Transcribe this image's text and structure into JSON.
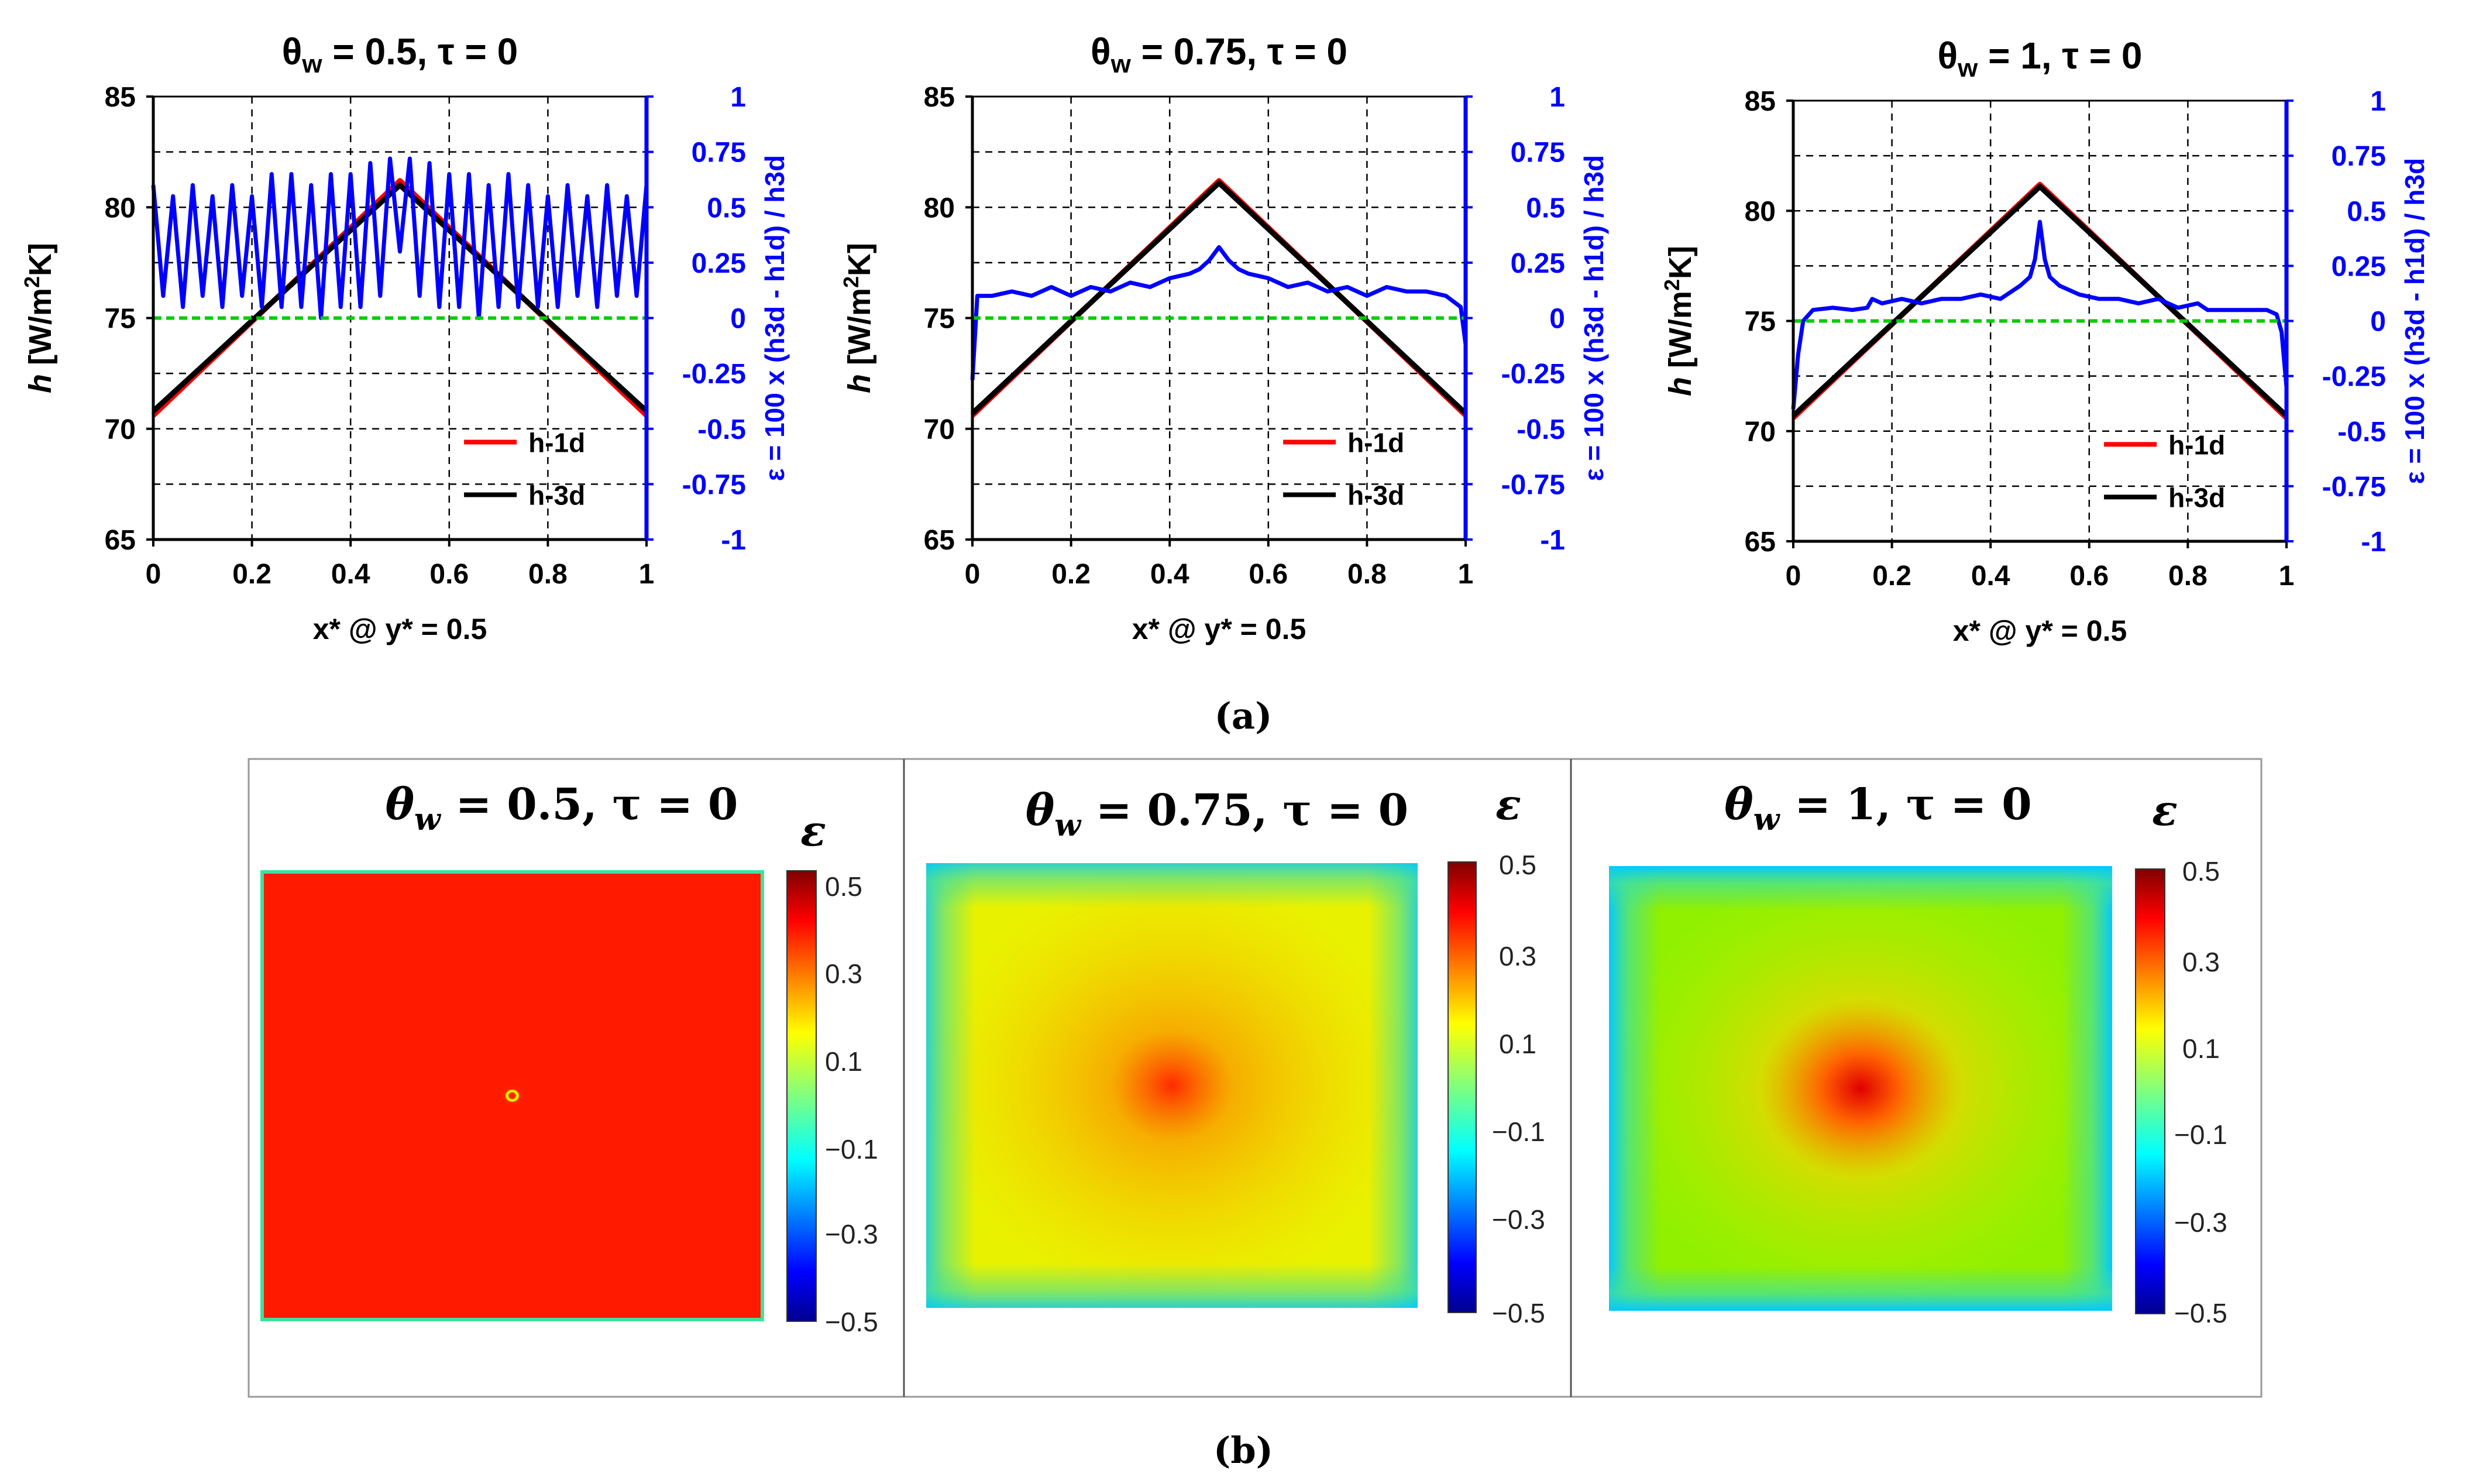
{
  "figure": {
    "label_a": "(a)",
    "label_b": "(b)"
  },
  "chart_data": [
    {
      "type": "line",
      "panel": "a-1",
      "title": {
        "theta_symbol": "θ",
        "theta_sub": "w",
        "text": " = 0.5, τ = 0"
      },
      "xlabel": "x* @ y* = 0.5",
      "ylabel": {
        "h": "h",
        "unit_pre": " [W/m",
        "unit_sup": "2",
        "unit_post": "K]"
      },
      "y2label": "ε = 100 x (h3d - h1d) / h3d",
      "xlim": [
        0,
        1
      ],
      "ylim": [
        65,
        85
      ],
      "y2lim": [
        -1,
        1
      ],
      "xticks": [
        "0",
        "0.2",
        "0.4",
        "0.6",
        "0.8",
        "1"
      ],
      "yticks": [
        "65",
        "70",
        "75",
        "80",
        "85"
      ],
      "y2ticks": [
        "-1",
        "-0.75",
        "-0.5",
        "-0.25",
        "0",
        "0.25",
        "0.5",
        "0.75",
        "1"
      ],
      "grid": true,
      "legend_position": "bottom-right",
      "h_min": 70.6,
      "h_max": 81.2,
      "eps_pattern": "oscillating 0.05 to 0.7",
      "series": [
        {
          "name": "h-1d",
          "color": "#ff0000",
          "x": [
            0,
            0.5,
            1
          ],
          "y": [
            70.6,
            81.2,
            70.6
          ]
        },
        {
          "name": "h-3d",
          "color": "#000000",
          "x": [
            0,
            0.5,
            1
          ],
          "y": [
            70.8,
            81.0,
            70.8
          ]
        },
        {
          "color": "#0000ff",
          "axis": "right",
          "x": [
            0,
            0.02,
            0.04,
            0.06,
            0.08,
            0.1,
            0.12,
            0.14,
            0.16,
            0.18,
            0.2,
            0.22,
            0.24,
            0.26,
            0.28,
            0.3,
            0.32,
            0.34,
            0.36,
            0.38,
            0.4,
            0.42,
            0.44,
            0.46,
            0.48,
            0.5,
            0.52,
            0.54,
            0.56,
            0.58,
            0.6,
            0.62,
            0.64,
            0.66,
            0.68,
            0.7,
            0.72,
            0.74,
            0.76,
            0.78,
            0.8,
            0.82,
            0.84,
            0.86,
            0.88,
            0.9,
            0.92,
            0.94,
            0.96,
            0.98,
            1
          ],
          "y": [
            0.6,
            0.1,
            0.55,
            0.05,
            0.6,
            0.1,
            0.55,
            0.05,
            0.6,
            0.1,
            0.55,
            0.05,
            0.65,
            0.05,
            0.65,
            0.05,
            0.6,
            0.0,
            0.65,
            0.05,
            0.65,
            0.05,
            0.7,
            0.1,
            0.72,
            0.3,
            0.72,
            0.1,
            0.7,
            0.05,
            0.65,
            0.05,
            0.65,
            0.0,
            0.6,
            0.05,
            0.65,
            0.05,
            0.6,
            0.05,
            0.55,
            0.05,
            0.6,
            0.1,
            0.55,
            0.05,
            0.6,
            0.1,
            0.55,
            0.1,
            0.6
          ]
        },
        {
          "color": "#00cc00",
          "axis": "right",
          "dashed": true,
          "x": [
            0,
            1
          ],
          "y": [
            0,
            0
          ]
        }
      ]
    },
    {
      "type": "line",
      "panel": "a-2",
      "title": {
        "theta_symbol": "θ",
        "theta_sub": "w",
        "text": " = 0.75, τ = 0"
      },
      "xlabel": "x* @ y* = 0.5",
      "ylabel": {
        "h": "h",
        "unit_pre": " [W/m",
        "unit_sup": "2",
        "unit_post": "K]"
      },
      "y2label": "ε = 100 x (h3d - h1d) / h3d",
      "xlim": [
        0,
        1
      ],
      "ylim": [
        65,
        85
      ],
      "y2lim": [
        -1,
        1
      ],
      "xticks": [
        "0",
        "0.2",
        "0.4",
        "0.6",
        "0.8",
        "1"
      ],
      "yticks": [
        "65",
        "70",
        "75",
        "80",
        "85"
      ],
      "y2ticks": [
        "-1",
        "-0.75",
        "-0.5",
        "-0.25",
        "0",
        "0.25",
        "0.5",
        "0.75",
        "1"
      ],
      "grid": true,
      "legend_position": "bottom-right",
      "h_min": 70.6,
      "h_max": 81.2,
      "series": [
        {
          "name": "h-1d",
          "color": "#ff0000",
          "x": [
            0,
            0.5,
            1
          ],
          "y": [
            70.6,
            81.2,
            70.6
          ]
        },
        {
          "name": "h-3d",
          "color": "#000000",
          "x": [
            0,
            0.5,
            1
          ],
          "y": [
            70.7,
            81.1,
            70.7
          ]
        },
        {
          "color": "#0000ff",
          "axis": "right",
          "x": [
            0,
            0.01,
            0.04,
            0.08,
            0.12,
            0.16,
            0.2,
            0.24,
            0.28,
            0.32,
            0.36,
            0.4,
            0.44,
            0.46,
            0.48,
            0.5,
            0.52,
            0.54,
            0.56,
            0.6,
            0.64,
            0.68,
            0.72,
            0.76,
            0.8,
            0.84,
            0.88,
            0.92,
            0.96,
            0.99,
            1
          ],
          "y": [
            -0.28,
            0.1,
            0.1,
            0.12,
            0.1,
            0.14,
            0.1,
            0.14,
            0.12,
            0.16,
            0.14,
            0.18,
            0.2,
            0.22,
            0.26,
            0.32,
            0.26,
            0.22,
            0.2,
            0.18,
            0.14,
            0.16,
            0.12,
            0.14,
            0.1,
            0.14,
            0.12,
            0.12,
            0.1,
            0.05,
            -0.12
          ]
        },
        {
          "color": "#00cc00",
          "axis": "right",
          "dashed": true,
          "x": [
            0,
            1
          ],
          "y": [
            0,
            0
          ]
        }
      ]
    },
    {
      "type": "line",
      "panel": "a-3",
      "title": {
        "theta_symbol": "θ",
        "theta_sub": "w",
        "text": " = 1, τ = 0"
      },
      "xlabel": "x* @ y* = 0.5",
      "ylabel": {
        "h": "h",
        "unit_pre": " [W/m",
        "unit_sup": "2",
        "unit_post": "K]"
      },
      "y2label": "ε = 100 x (h3d - h1d) / h3d",
      "xlim": [
        0,
        1
      ],
      "ylim": [
        65,
        85
      ],
      "y2lim": [
        -1,
        1
      ],
      "xticks": [
        "0",
        "0.2",
        "0.4",
        "0.6",
        "0.8",
        "1"
      ],
      "yticks": [
        "65",
        "70",
        "75",
        "80",
        "85"
      ],
      "y2ticks": [
        "-1",
        "-0.75",
        "-0.5",
        "-0.25",
        "0",
        "0.25",
        "0.5",
        "0.75",
        "1"
      ],
      "grid": true,
      "legend_position": "bottom-right",
      "h_min": 70.6,
      "h_max": 81.2,
      "series": [
        {
          "name": "h-1d",
          "color": "#ff0000",
          "x": [
            0,
            0.5,
            1
          ],
          "y": [
            70.6,
            81.2,
            70.6
          ]
        },
        {
          "name": "h-3d",
          "color": "#000000",
          "x": [
            0,
            0.5,
            1
          ],
          "y": [
            70.7,
            81.1,
            70.7
          ]
        },
        {
          "color": "#0000ff",
          "axis": "right",
          "x": [
            0,
            0.01,
            0.02,
            0.04,
            0.08,
            0.12,
            0.15,
            0.16,
            0.18,
            0.22,
            0.26,
            0.3,
            0.34,
            0.38,
            0.42,
            0.46,
            0.48,
            0.49,
            0.5,
            0.51,
            0.52,
            0.54,
            0.58,
            0.62,
            0.66,
            0.7,
            0.74,
            0.78,
            0.82,
            0.84,
            0.88,
            0.92,
            0.96,
            0.98,
            0.99,
            1
          ],
          "y": [
            -0.4,
            -0.15,
            0.0,
            0.05,
            0.06,
            0.05,
            0.06,
            0.1,
            0.08,
            0.1,
            0.08,
            0.1,
            0.1,
            0.12,
            0.1,
            0.16,
            0.2,
            0.28,
            0.45,
            0.28,
            0.2,
            0.16,
            0.12,
            0.1,
            0.1,
            0.08,
            0.1,
            0.06,
            0.08,
            0.05,
            0.05,
            0.05,
            0.05,
            0.03,
            -0.05,
            -0.3
          ]
        },
        {
          "color": "#00cc00",
          "axis": "right",
          "dashed": true,
          "x": [
            0,
            1
          ],
          "y": [
            0,
            0
          ]
        }
      ]
    },
    {
      "type": "heatmap",
      "panel": "b-1",
      "title": {
        "theta_symbol": "θ",
        "theta_sub": "w",
        "text": " = 0.5, τ = 0"
      },
      "colorbar_label": "ε",
      "colorbar_ticks": [
        "0.5",
        "0.3",
        "0.1",
        "−0.1",
        "−0.3",
        "−0.5"
      ],
      "clim": [
        -0.5,
        0.5
      ],
      "colormap": "jet",
      "pattern": "concentric rings alternating 0.1 and 0.5 centered at (0.5, 0.5)"
    },
    {
      "type": "heatmap",
      "panel": "b-2",
      "title": {
        "theta_symbol": "θ",
        "theta_sub": "w",
        "text": " = 0.75, τ = 0"
      },
      "colorbar_label": "ε",
      "colorbar_ticks": [
        "0.5",
        "0.3",
        "0.1",
        "−0.1",
        "−0.3",
        "−0.5"
      ],
      "clim": [
        -0.5,
        0.5
      ],
      "colormap": "jet",
      "pattern": "fine interference pattern, mostly 0.1 to 0.2, peak 0.4 at center"
    },
    {
      "type": "heatmap",
      "panel": "b-3",
      "title": {
        "theta_symbol": "θ",
        "theta_sub": "w",
        "text": " = 1, τ = 0"
      },
      "colorbar_label": "ε",
      "colorbar_ticks": [
        "0.5",
        "0.3",
        "0.1",
        "−0.1",
        "−0.3",
        "−0.5"
      ],
      "clim": [
        -0.5,
        0.5
      ],
      "colormap": "jet",
      "pattern": "mostly 0.0 to 0.1, peak 0.5 at center, -0.1 near edges"
    }
  ]
}
